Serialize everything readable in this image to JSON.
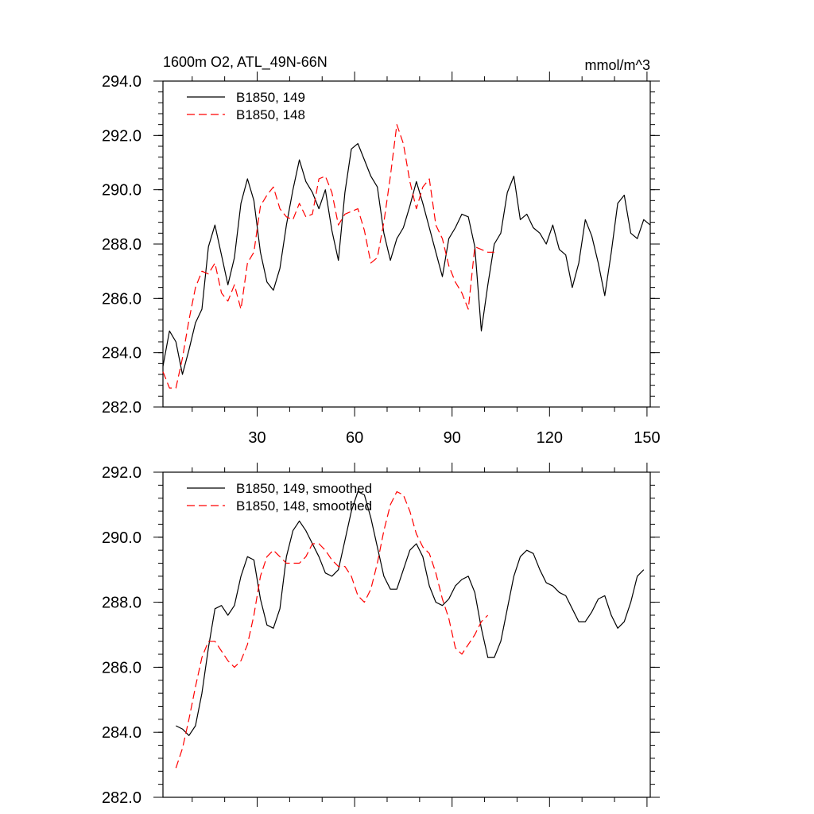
{
  "chart_data": [
    {
      "type": "line",
      "title": "1600m O2, ATL_49N-66N",
      "units": "mmol/m^3",
      "xlim": [
        1,
        151
      ],
      "ylim": [
        282,
        294
      ],
      "xticks": [
        30,
        60,
        90,
        120,
        150
      ],
      "xtick_labels": [
        "30",
        "60",
        "90",
        "120",
        "150"
      ],
      "yticks": [
        282,
        284,
        286,
        288,
        290,
        292,
        294
      ],
      "ytick_labels": [
        "282.0",
        "284.0",
        "286.0",
        "288.0",
        "290.0",
        "292.0",
        "294.0"
      ],
      "legend_position": "top-left",
      "series": [
        {
          "name": "B1850, 149",
          "color": "#000000",
          "dash": "solid",
          "x": [
            1,
            3,
            5,
            7,
            9,
            11,
            13,
            15,
            17,
            19,
            21,
            23,
            25,
            27,
            29,
            31,
            33,
            35,
            37,
            39,
            41,
            43,
            45,
            47,
            49,
            51,
            53,
            55,
            57,
            59,
            61,
            63,
            65,
            67,
            69,
            71,
            73,
            75,
            77,
            79,
            81,
            83,
            85,
            87,
            89,
            91,
            93,
            95,
            97,
            99,
            101,
            103,
            105,
            107,
            109,
            111,
            113,
            115,
            117,
            119,
            121,
            123,
            125,
            127,
            129,
            131,
            133,
            135,
            137,
            139,
            141,
            143,
            145,
            147,
            149,
            151
          ],
          "values": [
            283.5,
            284.8,
            284.4,
            283.2,
            284.1,
            285.1,
            285.6,
            287.9,
            288.7,
            287.6,
            286.5,
            287.5,
            289.5,
            290.4,
            289.6,
            287.7,
            286.6,
            286.3,
            287.1,
            288.7,
            290.0,
            291.1,
            290.3,
            289.9,
            289.3,
            290.0,
            288.5,
            287.4,
            289.9,
            291.5,
            291.7,
            291.1,
            290.5,
            290.1,
            288.4,
            287.4,
            288.2,
            288.6,
            289.4,
            290.3,
            289.5,
            288.6,
            287.7,
            286.8,
            288.2,
            288.6,
            289.1,
            289.0,
            287.9,
            284.8,
            286.5,
            288.0,
            288.4,
            289.9,
            290.5,
            288.9,
            289.1,
            288.6,
            288.4,
            288.0,
            288.7,
            287.8,
            287.6,
            286.4,
            287.3,
            288.9,
            288.3,
            287.3,
            286.1,
            287.7,
            289.5,
            289.8,
            288.4,
            288.2,
            288.9,
            288.7
          ]
        },
        {
          "name": "B1850, 148",
          "color": "#ff0000",
          "dash": "dashed",
          "x": [
            1,
            3,
            5,
            7,
            9,
            11,
            13,
            15,
            17,
            19,
            21,
            23,
            25,
            27,
            29,
            31,
            33,
            35,
            37,
            39,
            41,
            43,
            45,
            47,
            49,
            51,
            53,
            55,
            57,
            59,
            61,
            63,
            65,
            67,
            69,
            71,
            73,
            75,
            77,
            79,
            81,
            83,
            85,
            87,
            89,
            91,
            93,
            95,
            97,
            99,
            101,
            103
          ],
          "values": [
            283.3,
            282.7,
            282.7,
            283.8,
            285.2,
            286.4,
            287.0,
            286.9,
            287.3,
            286.2,
            285.9,
            286.5,
            285.6,
            287.3,
            287.7,
            289.4,
            289.8,
            290.1,
            289.3,
            289.0,
            288.9,
            289.5,
            289.0,
            289.1,
            290.4,
            290.5,
            289.9,
            288.7,
            289.1,
            289.2,
            289.3,
            288.5,
            287.3,
            287.5,
            288.8,
            290.5,
            292.4,
            291.7,
            290.3,
            289.3,
            290.1,
            290.4,
            288.7,
            288.2,
            287.2,
            286.6,
            286.2,
            285.6,
            287.9,
            287.8,
            287.7,
            287.7
          ]
        }
      ]
    },
    {
      "type": "line",
      "title": "",
      "xlim": [
        1,
        151
      ],
      "ylim": [
        282,
        292
      ],
      "xticks": [
        30,
        60,
        90,
        120,
        150
      ],
      "yticks": [
        282,
        284,
        286,
        288,
        290,
        292
      ],
      "ytick_labels": [
        "282.0",
        "284.0",
        "286.0",
        "288.0",
        "290.0",
        "292.0"
      ],
      "legend_position": "top-left",
      "series": [
        {
          "name": "B1850, 149, smoothed",
          "color": "#000000",
          "dash": "solid",
          "x": [
            5,
            7,
            9,
            11,
            13,
            15,
            17,
            19,
            21,
            23,
            25,
            27,
            29,
            31,
            33,
            35,
            37,
            39,
            41,
            43,
            45,
            47,
            49,
            51,
            53,
            55,
            57,
            59,
            61,
            63,
            65,
            67,
            69,
            71,
            73,
            75,
            77,
            79,
            81,
            83,
            85,
            87,
            89,
            91,
            93,
            95,
            97,
            99,
            101,
            103,
            105,
            107,
            109,
            111,
            113,
            115,
            117,
            119,
            121,
            123,
            125,
            127,
            129,
            131,
            133,
            135,
            137,
            139,
            141,
            143,
            145,
            147,
            149
          ],
          "values": [
            284.2,
            284.1,
            283.9,
            284.2,
            285.2,
            286.6,
            287.8,
            287.9,
            287.6,
            287.9,
            288.8,
            289.4,
            289.3,
            288.1,
            287.3,
            287.2,
            287.8,
            289.4,
            290.2,
            290.5,
            290.2,
            289.8,
            289.4,
            288.9,
            288.8,
            289.0,
            289.9,
            290.8,
            291.4,
            291.3,
            290.6,
            289.7,
            288.8,
            288.4,
            288.4,
            289.0,
            289.6,
            289.8,
            289.4,
            288.5,
            288.0,
            287.9,
            288.1,
            288.5,
            288.7,
            288.8,
            288.3,
            287.2,
            286.3,
            286.3,
            286.8,
            287.8,
            288.8,
            289.4,
            289.6,
            289.5,
            289.0,
            288.6,
            288.5,
            288.3,
            288.2,
            287.8,
            287.4,
            287.4,
            287.7,
            288.1,
            288.2,
            287.6,
            287.2,
            287.4,
            288.0,
            288.8,
            289.0
          ]
        },
        {
          "name": "B1850, 148, smoothed",
          "color": "#ff0000",
          "dash": "dashed",
          "x": [
            5,
            7,
            9,
            11,
            13,
            15,
            17,
            19,
            21,
            23,
            25,
            27,
            29,
            31,
            33,
            35,
            37,
            39,
            41,
            43,
            45,
            47,
            49,
            51,
            53,
            55,
            57,
            59,
            61,
            63,
            65,
            67,
            69,
            71,
            73,
            75,
            77,
            79,
            81,
            83,
            85,
            87,
            89,
            91,
            93,
            95,
            97,
            99,
            101
          ],
          "values": [
            282.9,
            283.5,
            284.4,
            285.4,
            286.3,
            286.8,
            286.8,
            286.5,
            286.2,
            286.0,
            286.2,
            286.7,
            287.6,
            288.8,
            289.4,
            289.6,
            289.4,
            289.2,
            289.2,
            289.2,
            289.4,
            289.8,
            289.8,
            289.6,
            289.3,
            289.1,
            289.1,
            288.8,
            288.2,
            288.0,
            288.4,
            289.2,
            290.2,
            291.0,
            291.4,
            291.3,
            290.8,
            290.1,
            289.7,
            289.5,
            288.9,
            288.1,
            287.5,
            286.6,
            286.4,
            286.7,
            287.0,
            287.4,
            287.6
          ]
        }
      ]
    }
  ]
}
